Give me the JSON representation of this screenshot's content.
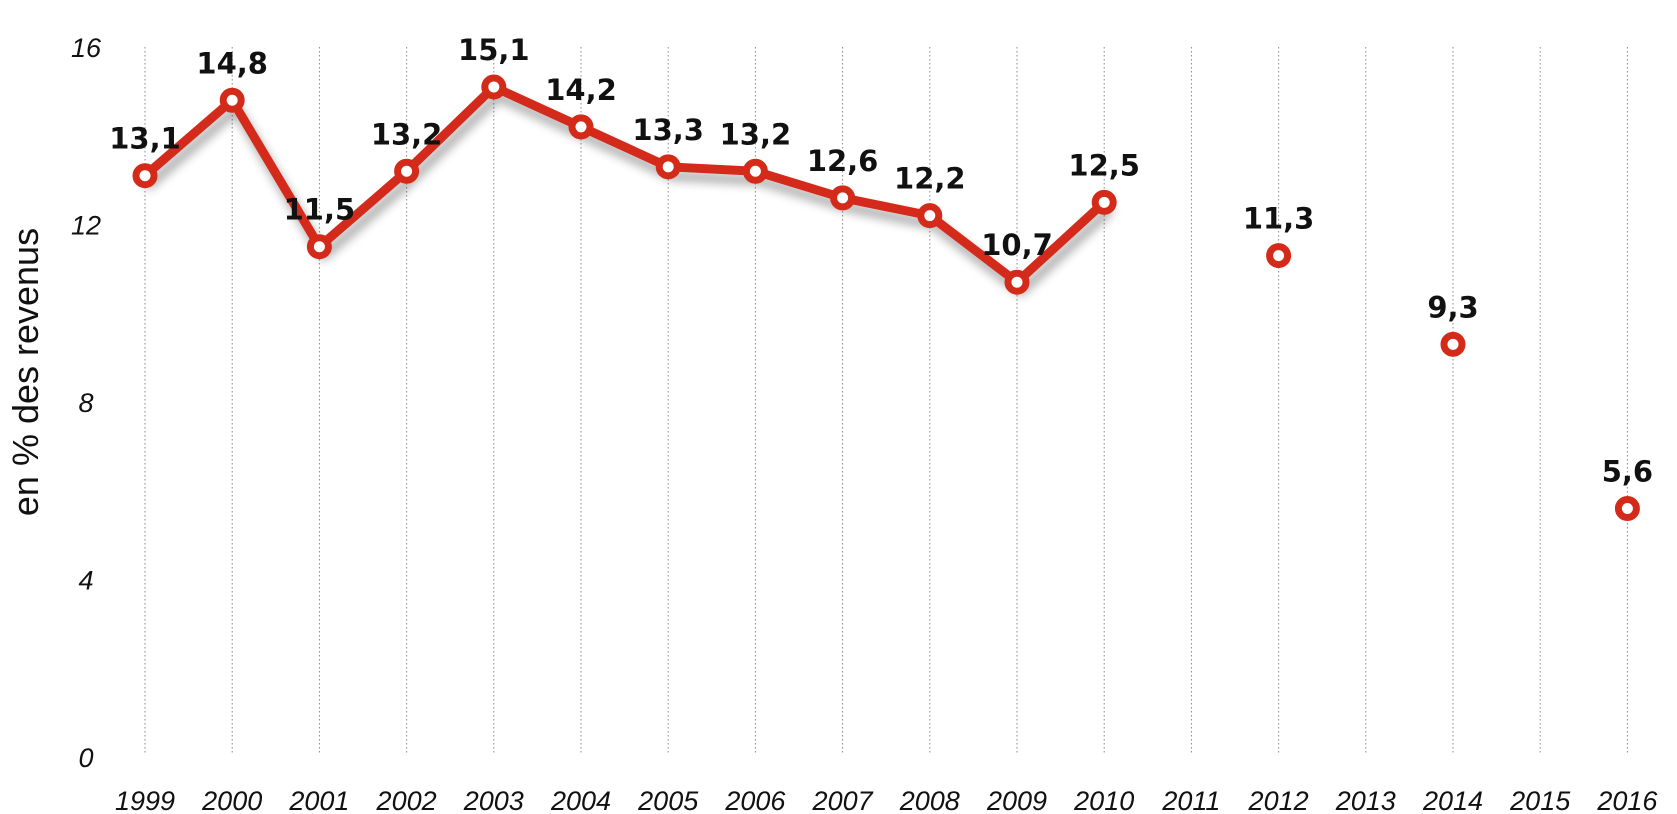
{
  "chart_data": {
    "type": "line",
    "ylabel": "en % des revenus",
    "xlabel": "",
    "ylim": [
      0,
      16
    ],
    "yticks": [
      "0",
      "4",
      "8",
      "12",
      "16"
    ],
    "ytick_values": [
      0,
      4,
      8,
      12,
      16
    ],
    "categories": [
      "1999",
      "2000",
      "2001",
      "2002",
      "2003",
      "2004",
      "2005",
      "2006",
      "2007",
      "2008",
      "2009",
      "2010",
      "2011",
      "2012",
      "2013",
      "2014",
      "2015",
      "2016"
    ],
    "series": [
      {
        "values": [
          13.1,
          14.8,
          11.5,
          13.2,
          15.1,
          14.2,
          13.3,
          13.2,
          12.6,
          12.2,
          10.7,
          12.5,
          null,
          11.3,
          null,
          9.3,
          null,
          5.6
        ],
        "labels": [
          "13,1",
          "14,8",
          "11,5",
          "13,2",
          "15,1",
          "14,2",
          "13,3",
          "13,2",
          "12,6",
          "12,2",
          "10,7",
          "12,5",
          "",
          "11,3",
          "",
          "9,3",
          "",
          "5,6"
        ],
        "color": "#d42a1a"
      }
    ],
    "grid": "vertical dotted lines",
    "legend": "none"
  }
}
